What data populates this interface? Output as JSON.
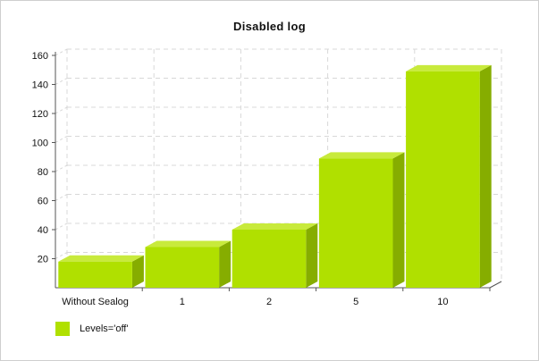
{
  "chart_data": {
    "type": "bar",
    "title": "Disabled log",
    "xlabel": "",
    "ylabel": "",
    "categories": [
      "Without Sealog",
      "1",
      "2",
      "5",
      "10"
    ],
    "series": [
      {
        "name": "Levels='off'",
        "values": [
          18,
          28,
          40,
          89,
          149
        ]
      }
    ],
    "ylim": [
      0,
      160
    ],
    "yticks": [
      20,
      40,
      60,
      80,
      100,
      120,
      140,
      160
    ],
    "grid": true,
    "legend_position": "bottom-left",
    "colors": {
      "bar_front": "#b0e000",
      "bar_top": "#c8ea3c",
      "bar_side": "#86ad00",
      "grid": "#d8d8d8",
      "axis": "#555555"
    }
  }
}
